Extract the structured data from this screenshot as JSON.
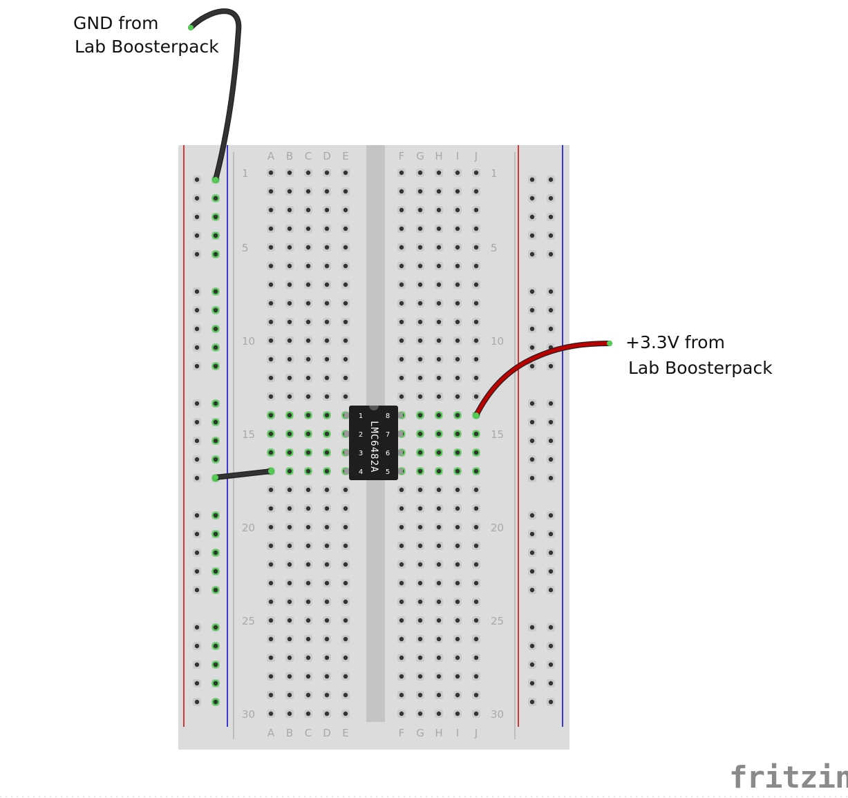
{
  "annotations": {
    "gnd_line1": "GND from",
    "gnd_line2": "Lab Boosterpack",
    "v33_line1": "+3.3V from",
    "v33_line2": "Lab Boosterpack"
  },
  "breadboard": {
    "column_labels_left": [
      "A",
      "B",
      "C",
      "D",
      "E"
    ],
    "column_labels_right": [
      "F",
      "G",
      "H",
      "I",
      "J"
    ],
    "row_numbers": [
      "1",
      "5",
      "10",
      "15",
      "20",
      "25",
      "30"
    ],
    "rows": 30
  },
  "chip": {
    "name": "LMC6482A",
    "pins_left": [
      "1",
      "2",
      "3",
      "4"
    ],
    "pins_right": [
      "8",
      "7",
      "6",
      "5"
    ]
  },
  "logo": "fritzing",
  "colors": {
    "board": "#dcdcdc",
    "rail_red": "#cc0000",
    "rail_blue": "#0000cc",
    "hole": "#333333",
    "connected": "#55cc55",
    "wire_black": "#333333",
    "wire_red": "#bb0000",
    "chip": "#1e1e1e"
  }
}
